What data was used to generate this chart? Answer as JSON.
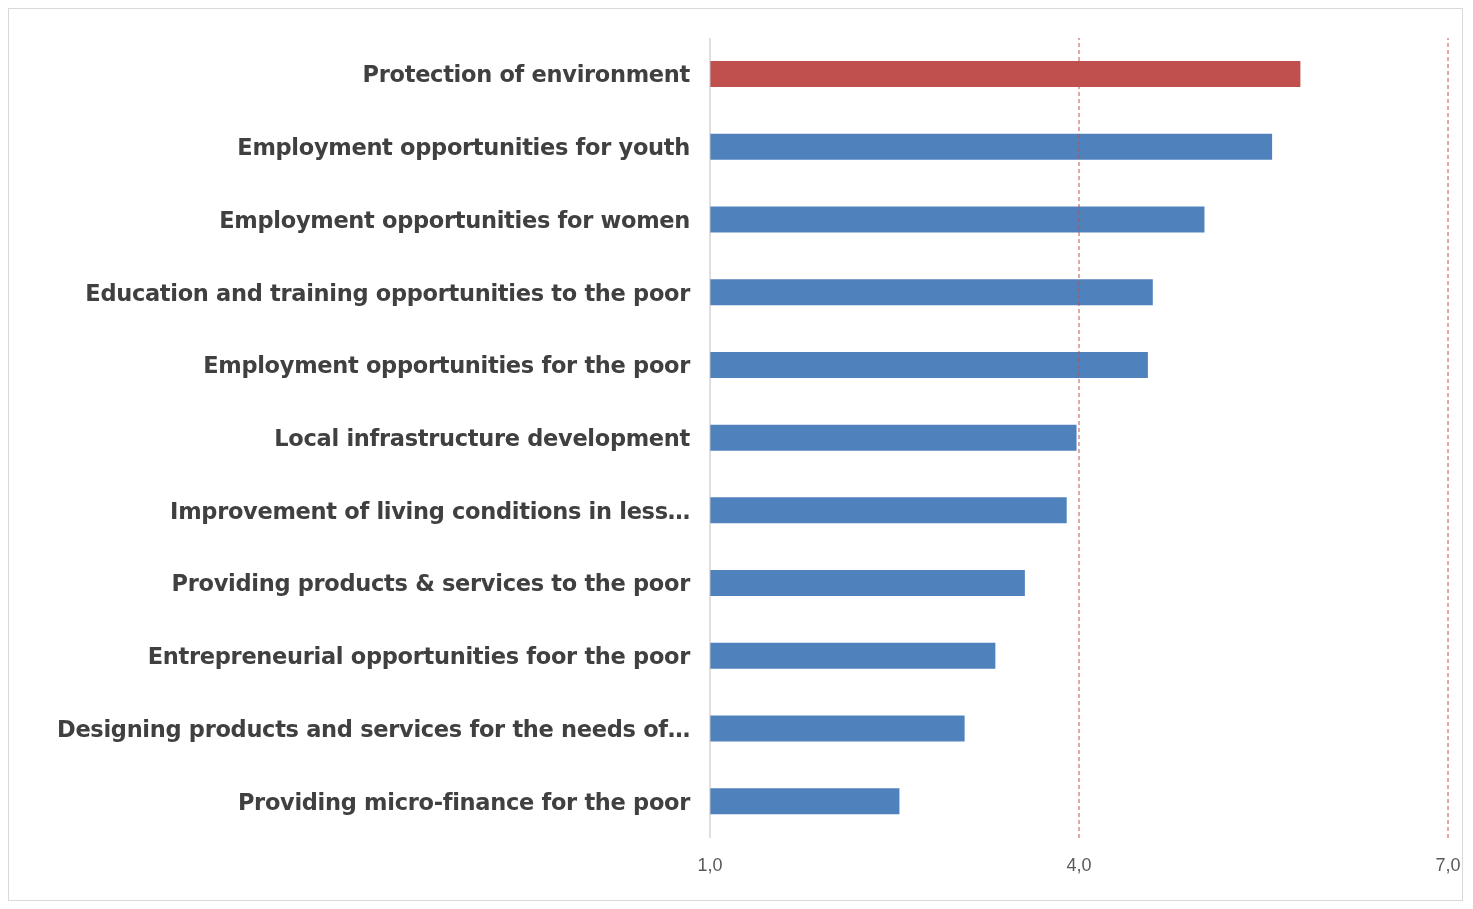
{
  "chart_data": {
    "type": "bar",
    "orientation": "horizontal",
    "categories": [
      "Protection of environment",
      "Employment opportunities for youth",
      "Employment opportunities for women",
      "Education and training opportunities to the poor",
      "Employment opportunities for the poor",
      "Local infrastructure development",
      "Improvement of living conditions in less…",
      "Providing products & services to the poor",
      "Entrepreneurial opportunities foor the poor",
      "Designing products and services for the needs of…",
      "Providing micro-finance for the poor"
    ],
    "values": [
      5.8,
      5.57,
      5.02,
      4.6,
      4.56,
      3.98,
      3.9,
      3.56,
      3.32,
      3.07,
      2.54
    ],
    "colors": [
      "#c0504d",
      "#4f81bd",
      "#4f81bd",
      "#4f81bd",
      "#4f81bd",
      "#4f81bd",
      "#4f81bd",
      "#4f81bd",
      "#4f81bd",
      "#4f81bd",
      "#4f81bd"
    ],
    "xlim": [
      1,
      7
    ],
    "xticks": [
      {
        "value": 1,
        "label": "1,0"
      },
      {
        "value": 4,
        "label": "4,0"
      },
      {
        "value": 7,
        "label": "7,0"
      }
    ],
    "ref_lines": [
      {
        "axis": "x",
        "value": 4,
        "color": "#c0504d",
        "line_style": "dashed"
      },
      {
        "axis": "x",
        "value": 7,
        "color": "#c0504d",
        "line_style": "dashed"
      }
    ]
  }
}
